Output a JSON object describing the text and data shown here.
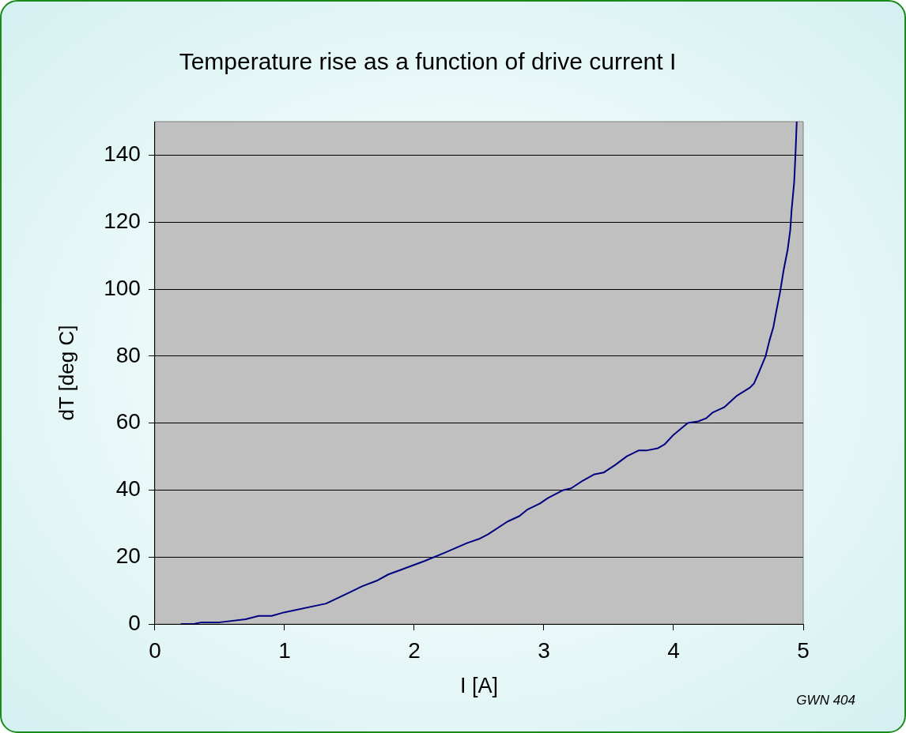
{
  "chart_data": {
    "type": "line",
    "title": "Temperature rise as a function of drive current I",
    "xlabel": "I [A]",
    "ylabel": "dT [deg C]",
    "annotations": [
      "GWN 404"
    ],
    "series": [
      {
        "color": "#000080",
        "x": [
          0.2,
          0.3,
          0.36,
          0.5,
          0.7,
          0.8,
          0.9,
          1.0,
          1.32,
          1.5,
          1.6,
          1.71,
          1.8,
          1.92,
          2.08,
          2.23,
          2.41,
          2.5,
          2.57,
          2.72,
          2.81,
          2.87,
          2.97,
          3.03,
          3.15,
          3.21,
          3.3,
          3.39,
          3.46,
          3.55,
          3.64,
          3.73,
          3.79,
          3.88,
          3.93,
          4.0,
          4.11,
          4.19,
          4.25,
          4.3,
          4.39,
          4.49,
          4.59,
          4.62,
          4.66,
          4.71,
          4.74,
          4.77,
          4.79,
          4.82,
          4.85,
          4.88,
          4.9,
          4.91,
          4.93,
          4.94,
          4.95
        ],
        "values": [
          0,
          0,
          0.5,
          0.5,
          1.4,
          2.4,
          2.4,
          3.5,
          6.1,
          9.4,
          11.3,
          12.9,
          14.8,
          16.5,
          18.8,
          21.2,
          24.2,
          25.4,
          26.8,
          30.6,
          32.2,
          34.1,
          36.0,
          37.6,
          40.0,
          40.5,
          42.8,
          44.7,
          45.2,
          47.5,
          50.1,
          51.8,
          51.8,
          52.5,
          53.6,
          56.5,
          60,
          60.5,
          61.4,
          63.1,
          64.7,
          68.2,
          70.6,
          71.8,
          75.3,
          80,
          84.7,
          88.7,
          92.9,
          98.8,
          105.9,
          111.8,
          117.6,
          123.5,
          131.8,
          140,
          150
        ]
      }
    ],
    "xlim": [
      0,
      5
    ],
    "xticks": [
      0,
      1,
      2,
      3,
      4,
      5
    ],
    "ylim": [
      0,
      150
    ],
    "yticks": [
      0,
      20,
      40,
      60,
      80,
      100,
      120,
      140
    ],
    "grid": "y",
    "legend": false,
    "marker": "none",
    "line_style": "solid"
  }
}
